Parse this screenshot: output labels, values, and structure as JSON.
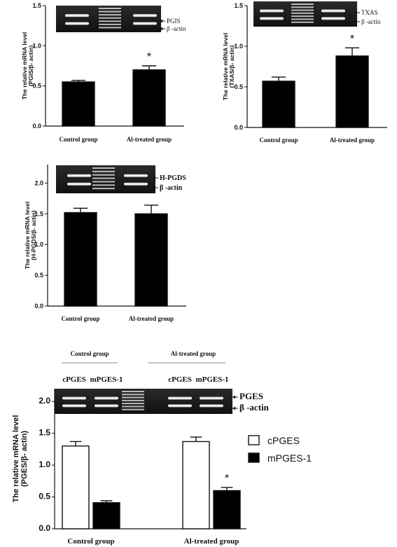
{
  "chart_data": [
    {
      "type": "bar",
      "categories": [
        "Control group",
        "Al-treated group"
      ],
      "values": [
        0.55,
        0.7
      ],
      "errors": [
        0.02,
        0.05
      ],
      "significance": [
        "",
        "*"
      ],
      "ylabel_lines": [
        "The relative mRNA level",
        "(PGIS/β- actin)"
      ],
      "yticks": [
        "0.0",
        "0.5",
        "1.0",
        "1.5"
      ],
      "ylim": [
        0,
        1.5
      ],
      "gel_labels": [
        "PGIS",
        "β -actin"
      ],
      "bar_color": "#000000"
    },
    {
      "type": "bar",
      "categories": [
        "Control group",
        "Al-treated group"
      ],
      "values": [
        0.57,
        0.88
      ],
      "errors": [
        0.05,
        0.1
      ],
      "significance": [
        "",
        "*"
      ],
      "ylabel_lines": [
        "The relative mRNA level",
        "(TXAS/β- actin)"
      ],
      "yticks": [
        "0.0",
        "0.5",
        "1.0",
        "1.5"
      ],
      "ylim": [
        0,
        1.5
      ],
      "gel_labels": [
        "TXAS",
        "β -actin"
      ],
      "bar_color": "#000000"
    },
    {
      "type": "bar",
      "categories": [
        "Control group",
        "Al-treated group"
      ],
      "values": [
        1.52,
        1.5
      ],
      "errors": [
        0.07,
        0.14
      ],
      "significance": [
        "",
        ""
      ],
      "ylabel_lines": [
        "The relative mRNA level",
        "(H-PGDS/β- actin)"
      ],
      "yticks": [
        "0.0",
        "0.5",
        "1.0",
        "1.5",
        "2.0"
      ],
      "ylim": [
        0,
        2.3
      ],
      "gel_labels": [
        "H-PGDS",
        "β -actin"
      ],
      "bar_color": "#000000"
    },
    {
      "type": "bar",
      "categories": [
        "Control group",
        "Al-treated group"
      ],
      "series": [
        {
          "name": "cPGES",
          "values": [
            1.3,
            1.37
          ],
          "errors": [
            0.07,
            0.07
          ],
          "significance": [
            "",
            ""
          ],
          "fill": "#ffffff"
        },
        {
          "name": "mPGES-1",
          "values": [
            0.41,
            0.6
          ],
          "errors": [
            0.03,
            0.05
          ],
          "significance": [
            "",
            "*"
          ],
          "fill": "#000000"
        }
      ],
      "ylabel_lines": [
        "The relative mRNA level",
        "(PGES/β- actin)"
      ],
      "yticks": [
        "0.0",
        "0.5",
        "1.0",
        "1.5",
        "2.0"
      ],
      "ylim": [
        0,
        2.2
      ],
      "legend": "right",
      "gel_labels": [
        "PGES",
        "β -actin"
      ],
      "gel_group_labels": [
        "Control group",
        "Al-treated group"
      ],
      "gel_lane_labels": [
        "cPGES",
        "mPGES-1",
        "cPGES",
        "mPGES-1"
      ]
    }
  ]
}
